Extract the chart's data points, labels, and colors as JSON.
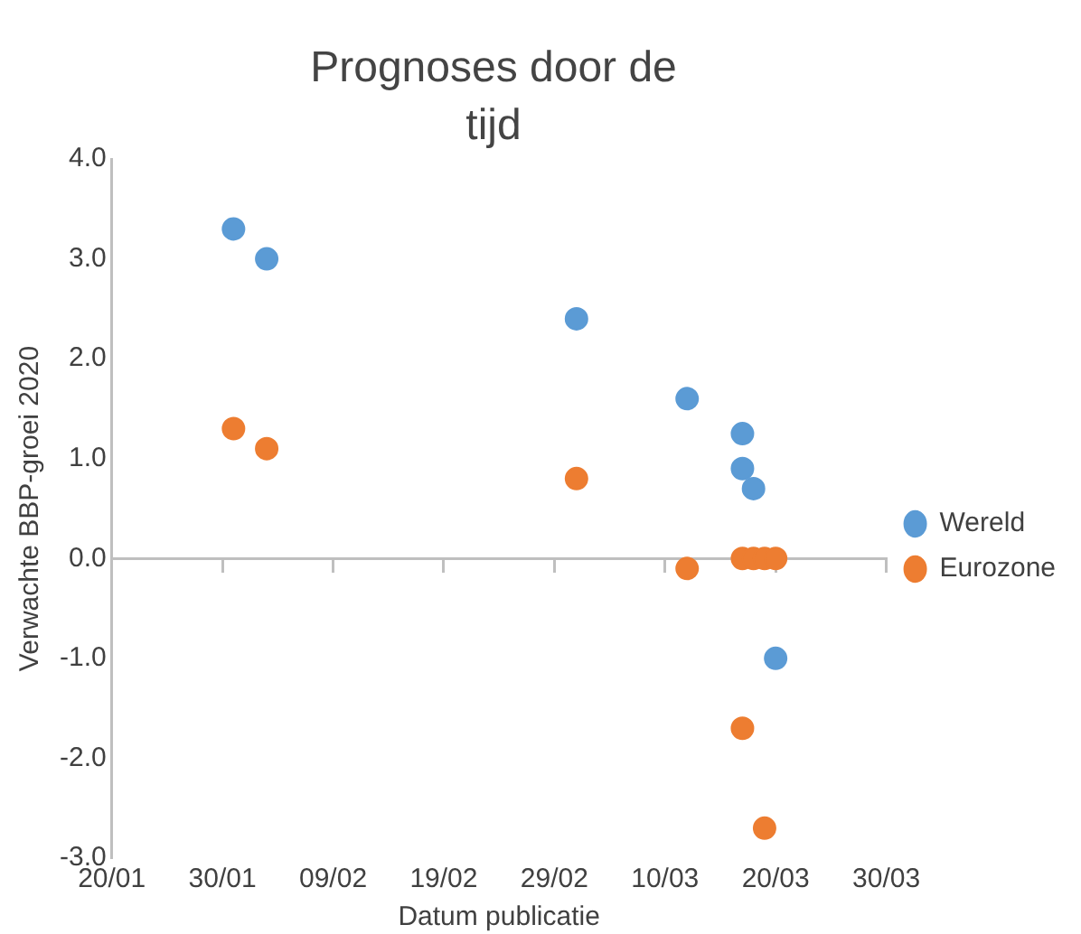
{
  "chart_data": {
    "type": "scatter",
    "title": "Prognoses door de tijd",
    "xlabel": "Datum publicatie",
    "ylabel": "Verwachte BBP-groei 2020",
    "series": [
      {
        "name": "Wereld",
        "color": "#5b9bd5",
        "x": [
          "--01-31",
          "--02-03",
          "--03-02",
          "--03-12",
          "--03-17",
          "--03-17",
          "--03-18",
          "--03-20"
        ],
        "values": [
          3.3,
          3.0,
          2.4,
          1.6,
          1.25,
          0.9,
          0.7,
          -1.0
        ]
      },
      {
        "name": "Eurozone",
        "color": "#ed7d31",
        "x": [
          "--01-31",
          "--02-03",
          "--03-02",
          "--03-12",
          "--03-17",
          "--03-18",
          "--03-19",
          "--03-20",
          "--03-17",
          "--03-19"
        ],
        "values": [
          1.3,
          1.1,
          0.8,
          -0.1,
          0.0,
          0.0,
          0.0,
          0.0,
          -1.7,
          -2.7
        ]
      }
    ],
    "xlim": [
      "--01-20",
      "--03-30"
    ],
    "xticks": [
      {
        "value": "--01-20",
        "label": "20/01"
      },
      {
        "value": "--01-30",
        "label": "30/01"
      },
      {
        "value": "--02-09",
        "label": "09/02"
      },
      {
        "value": "--02-19",
        "label": "19/02"
      },
      {
        "value": "--02-29",
        "label": "29/02"
      },
      {
        "value": "--03-10",
        "label": "10/03"
      },
      {
        "value": "--03-20",
        "label": "20/03"
      },
      {
        "value": "--03-30",
        "label": "30/03"
      }
    ],
    "ylim": [
      -3,
      4
    ],
    "yticks": [
      {
        "value": -3,
        "label": "-3.0"
      },
      {
        "value": -2,
        "label": "-2.0"
      },
      {
        "value": -1,
        "label": "-1.0"
      },
      {
        "value": 0,
        "label": "0.0"
      },
      {
        "value": 1,
        "label": "1.0"
      },
      {
        "value": 2,
        "label": "2.0"
      },
      {
        "value": 3,
        "label": "3.0"
      },
      {
        "value": 4,
        "label": "4.0"
      }
    ],
    "ref_lines": [
      {
        "axis": "y",
        "value": 0,
        "color": "#bfbfbf"
      }
    ],
    "grid": false,
    "legend": "right",
    "marker": "circle"
  }
}
